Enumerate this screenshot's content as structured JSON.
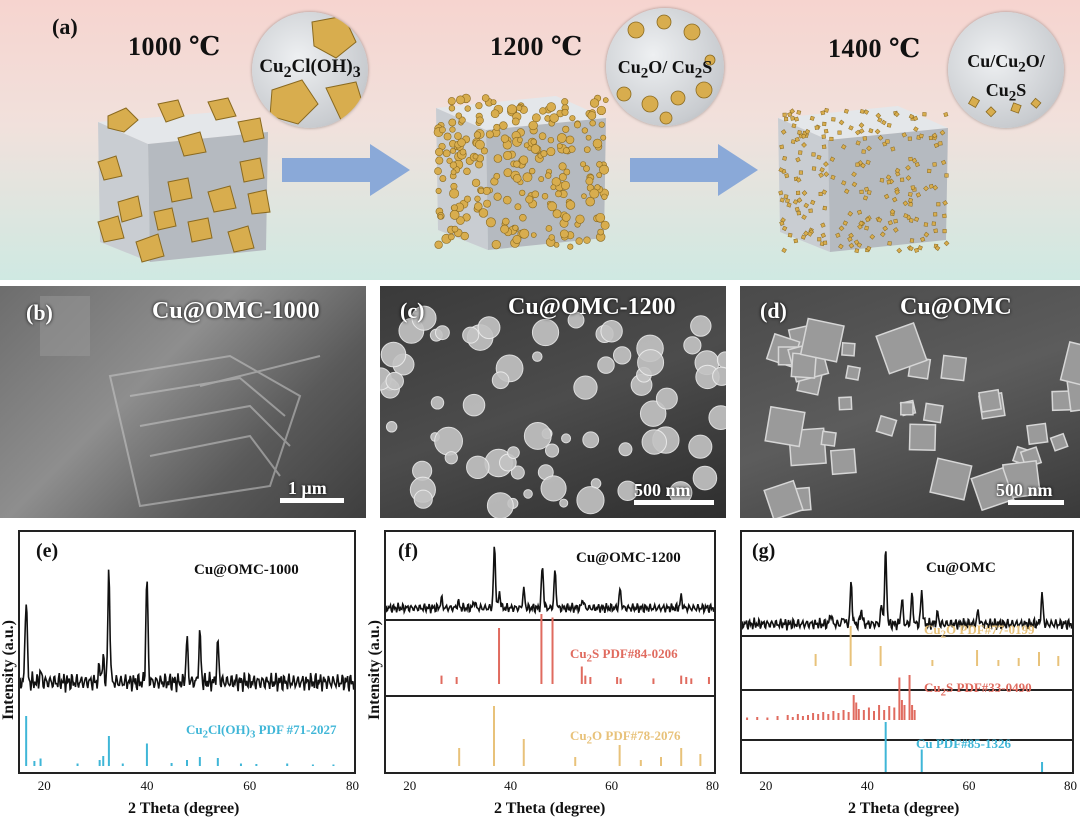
{
  "panel_a": {
    "label": "(a)",
    "stages": [
      {
        "temp": "1000 ℃",
        "phase_html": "Cu<sub>2</sub>Cl(OH)<sub>3</sub>"
      },
      {
        "temp": "1200 ℃",
        "phase_html": "Cu<sub>2</sub>O/ Cu<sub>2</sub>S"
      },
      {
        "temp": "1400 ℃",
        "phase_html": "Cu/Cu<sub>2</sub>O/<br>Cu<sub>2</sub>S"
      }
    ]
  },
  "sem": [
    {
      "label": "(b)",
      "title": "Cu@OMC-1000",
      "scale": "1 μm"
    },
    {
      "label": "(c)",
      "title": "Cu@OMC-1200",
      "scale": "500 nm"
    },
    {
      "label": "(d)",
      "title": "Cu@OMC",
      "scale": "500 nm"
    }
  ],
  "colors": {
    "cu2cloh3": "#3fb6d7",
    "cu2s": "#e06b5f",
    "cu2o": "#e8c27a",
    "cu": "#3fb6d7",
    "pattern": "#111111",
    "particle": "#d8ad4e"
  },
  "chart_data": [
    {
      "type": "line",
      "label": "(e)",
      "xlabel": "2 Theta (degree)",
      "ylabel": "Intensity (a.u.)",
      "xlim": [
        15,
        80
      ],
      "xticks": [
        20,
        40,
        60,
        80
      ],
      "series": [
        {
          "name": "Cu@OMC-1000",
          "peaks": [
            [
              16.2,
              0.72
            ],
            [
              19.0,
              0.08
            ],
            [
              30.5,
              0.12
            ],
            [
              31.2,
              0.18
            ],
            [
              32.3,
              0.92
            ],
            [
              39.7,
              0.86
            ],
            [
              47.5,
              0.35
            ],
            [
              50.0,
              0.4
            ],
            [
              53.5,
              0.32
            ]
          ]
        }
      ],
      "references": [
        {
          "name_html": "Cu<sub>2</sub>Cl(OH)<sub>3</sub> PDF #71-2027",
          "color": "#3fb6d7",
          "lines": [
            [
              16.2,
              1.0
            ],
            [
              17.8,
              0.1
            ],
            [
              19.0,
              0.15
            ],
            [
              26.2,
              0.05
            ],
            [
              30.5,
              0.12
            ],
            [
              31.2,
              0.2
            ],
            [
              32.3,
              0.6
            ],
            [
              35.0,
              0.05
            ],
            [
              39.7,
              0.45
            ],
            [
              44.5,
              0.06
            ],
            [
              47.5,
              0.12
            ],
            [
              50.0,
              0.18
            ],
            [
              53.5,
              0.16
            ],
            [
              58.0,
              0.05
            ],
            [
              61.0,
              0.04
            ],
            [
              67.0,
              0.05
            ],
            [
              72.0,
              0.03
            ],
            [
              76.0,
              0.03
            ]
          ]
        }
      ]
    },
    {
      "type": "line",
      "label": "(f)",
      "xlabel": "2 Theta (degree)",
      "ylabel": "Intensity (a.u.)",
      "xlim": [
        15,
        80
      ],
      "xticks": [
        20,
        40,
        60,
        80
      ],
      "series": [
        {
          "name": "Cu@OMC-1200",
          "peaks": [
            [
              26.0,
              0.15
            ],
            [
              29.3,
              0.1
            ],
            [
              32.5,
              0.12
            ],
            [
              36.5,
              1.0
            ],
            [
              37.5,
              0.25
            ],
            [
              42.3,
              0.3
            ],
            [
              46.0,
              0.7
            ],
            [
              48.5,
              0.6
            ],
            [
              54.0,
              0.15
            ],
            [
              61.4,
              0.3
            ],
            [
              73.5,
              0.18
            ]
          ]
        }
      ],
      "references": [
        {
          "name_html": "Cu<sub>2</sub>S PDF#84-0206",
          "color": "#e06b5f",
          "lines": [
            [
              26.0,
              0.12
            ],
            [
              29.0,
              0.1
            ],
            [
              37.4,
              0.8
            ],
            [
              45.8,
              1.0
            ],
            [
              48.0,
              0.95
            ],
            [
              53.8,
              0.25
            ],
            [
              54.5,
              0.12
            ],
            [
              55.5,
              0.1
            ],
            [
              60.8,
              0.1
            ],
            [
              61.5,
              0.08
            ],
            [
              68.0,
              0.08
            ],
            [
              73.5,
              0.12
            ],
            [
              74.5,
              0.1
            ],
            [
              75.5,
              0.08
            ],
            [
              79.0,
              0.1
            ]
          ]
        },
        {
          "name_html": "Cu<sub>2</sub>O PDF#78-2076",
          "color": "#e8c27a",
          "lines": [
            [
              29.5,
              0.3
            ],
            [
              36.4,
              1.0
            ],
            [
              42.3,
              0.45
            ],
            [
              52.5,
              0.15
            ],
            [
              61.3,
              0.35
            ],
            [
              65.5,
              0.1
            ],
            [
              69.5,
              0.15
            ],
            [
              73.5,
              0.3
            ],
            [
              77.3,
              0.2
            ]
          ]
        }
      ]
    },
    {
      "type": "line",
      "label": "(g)",
      "xlabel": "2 Theta (degree)",
      "ylabel": "",
      "xlim": [
        15,
        80
      ],
      "xticks": [
        20,
        40,
        60,
        80
      ],
      "series": [
        {
          "name": "Cu@OMC",
          "peaks": [
            [
              32.5,
              0.15
            ],
            [
              35.0,
              0.1
            ],
            [
              36.5,
              0.55
            ],
            [
              38.5,
              0.2
            ],
            [
              42.5,
              0.25
            ],
            [
              43.3,
              1.0
            ],
            [
              46.5,
              0.35
            ],
            [
              48.5,
              0.4
            ],
            [
              50.4,
              0.45
            ],
            [
              53.5,
              0.15
            ],
            [
              61.5,
              0.18
            ],
            [
              74.1,
              0.4
            ]
          ]
        }
      ],
      "references": [
        {
          "name_html": "Cu<sub>2</sub>O PDF#77-0199",
          "color": "#e8c27a",
          "lines": [
            [
              29.5,
              0.3
            ],
            [
              36.4,
              1.0
            ],
            [
              42.3,
              0.5
            ],
            [
              52.5,
              0.15
            ],
            [
              61.3,
              0.4
            ],
            [
              65.5,
              0.15
            ],
            [
              69.5,
              0.2
            ],
            [
              73.5,
              0.35
            ],
            [
              77.3,
              0.25
            ]
          ]
        },
        {
          "name_html": "Cu<sub>2</sub>S PDF#33-0490",
          "color": "#e06b5f",
          "lines": [
            [
              16,
              0.05
            ],
            [
              18,
              0.06
            ],
            [
              20,
              0.05
            ],
            [
              22,
              0.08
            ],
            [
              24,
              0.1
            ],
            [
              25,
              0.06
            ],
            [
              26,
              0.12
            ],
            [
              27,
              0.08
            ],
            [
              28,
              0.1
            ],
            [
              29,
              0.14
            ],
            [
              30,
              0.12
            ],
            [
              31,
              0.16
            ],
            [
              32,
              0.12
            ],
            [
              33,
              0.18
            ],
            [
              34,
              0.14
            ],
            [
              35,
              0.2
            ],
            [
              36,
              0.16
            ],
            [
              37,
              0.5
            ],
            [
              37.5,
              0.35
            ],
            [
              38,
              0.22
            ],
            [
              39,
              0.2
            ],
            [
              40,
              0.25
            ],
            [
              41,
              0.18
            ],
            [
              42,
              0.3
            ],
            [
              43,
              0.2
            ],
            [
              44,
              0.28
            ],
            [
              45,
              0.25
            ],
            [
              46,
              0.85
            ],
            [
              46.5,
              0.4
            ],
            [
              47,
              0.3
            ],
            [
              48,
              0.9
            ],
            [
              48.5,
              0.3
            ],
            [
              49,
              0.2
            ]
          ]
        },
        {
          "name_html": "Cu PDF#85-1326",
          "color": "#3fb6d7",
          "lines": [
            [
              43.3,
              1.0
            ],
            [
              50.4,
              0.45
            ],
            [
              74.1,
              0.2
            ]
          ]
        }
      ]
    }
  ]
}
